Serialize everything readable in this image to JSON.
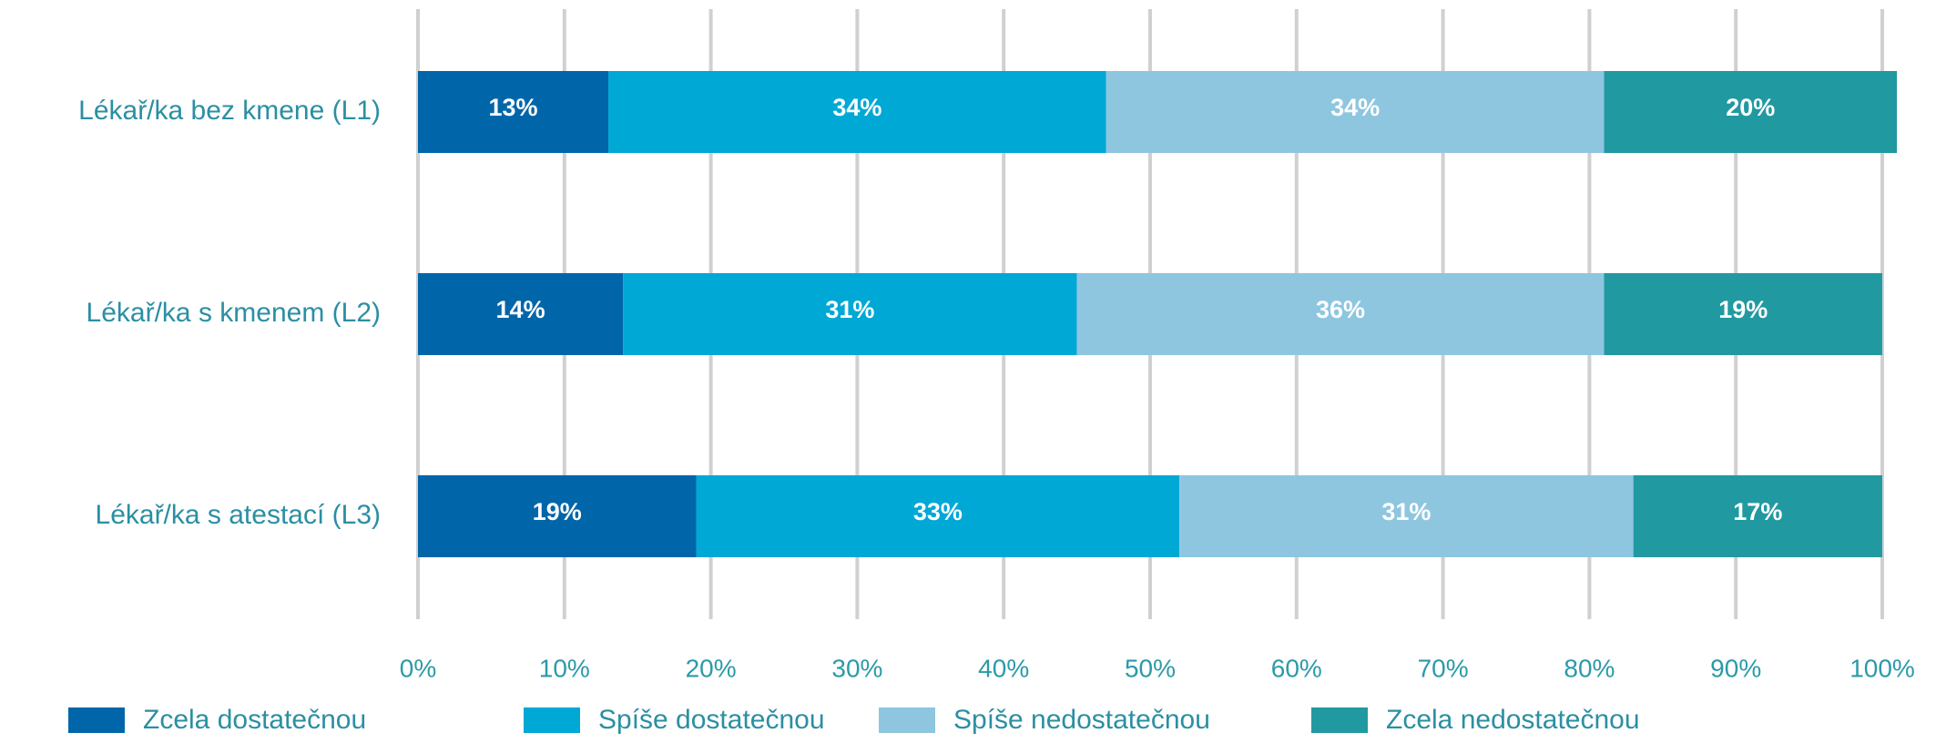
{
  "chart_data": {
    "type": "stacked_bar_horizontal",
    "categories": [
      "Lékař/ka bez kmene (L1)",
      "Lékař/ka s kmenem (L2)",
      "Lékař/ka s atestací (L3)"
    ],
    "series": [
      {
        "name": "Zcela dostatečnou",
        "color": "#0066a9",
        "values": [
          13,
          14,
          19
        ],
        "value_labels": [
          "13%",
          "14%",
          "19%"
        ]
      },
      {
        "name": "Spíše dostatečnou",
        "color": "#00a8d5",
        "values": [
          34,
          31,
          33
        ],
        "value_labels": [
          "34%",
          "31%",
          "33%"
        ]
      },
      {
        "name": "Spíše nedostatečnou",
        "color": "#8ec6e0",
        "values": [
          34,
          36,
          31
        ],
        "value_labels": [
          "34%",
          "36%",
          "31%"
        ]
      },
      {
        "name": "Zcela nedostatečnou",
        "color": "#2199a1",
        "values": [
          20,
          19,
          17
        ],
        "value_labels": [
          "20%",
          "19%",
          "17%"
        ]
      }
    ],
    "xlim": [
      0,
      100
    ],
    "xticks": [
      {
        "value": 0,
        "label": "0%"
      },
      {
        "value": 10,
        "label": "10%"
      },
      {
        "value": 20,
        "label": "20%"
      },
      {
        "value": 30,
        "label": "30%"
      },
      {
        "value": 40,
        "label": "40%"
      },
      {
        "value": 50,
        "label": "50%"
      },
      {
        "value": 60,
        "label": "60%"
      },
      {
        "value": 70,
        "label": "70%"
      },
      {
        "value": 80,
        "label": "80%"
      },
      {
        "value": 90,
        "label": "90%"
      },
      {
        "value": 100,
        "label": "100%"
      }
    ],
    "grid": true
  }
}
